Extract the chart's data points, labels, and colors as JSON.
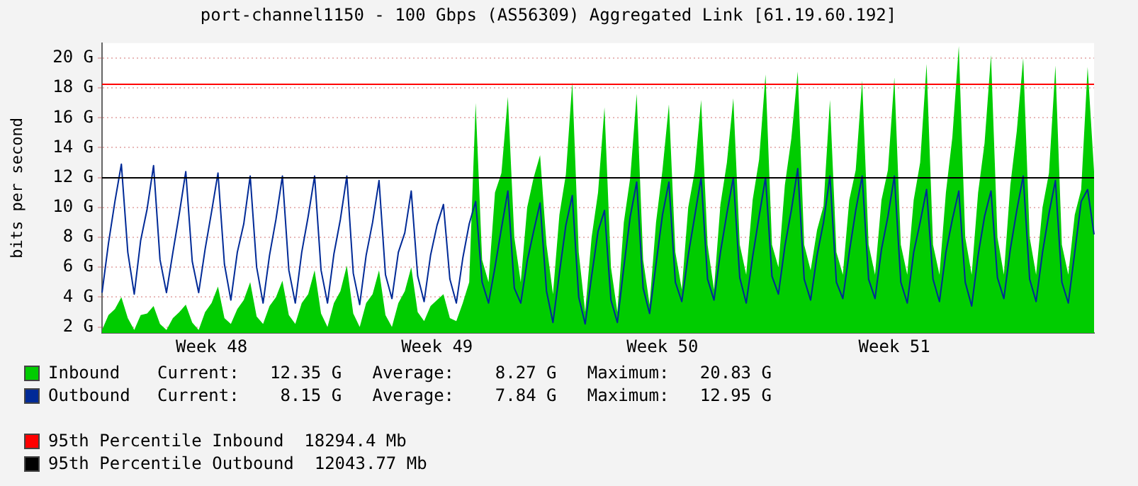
{
  "chart_data": {
    "type": "line",
    "title": "port-channel1150 - 100 Gbps (AS56309) Aggregated Link [61.19.60.192]",
    "ylabel": "bits per second",
    "marker": "none",
    "grid": "y",
    "legend": "bottom",
    "ylim": [
      1.6,
      21
    ],
    "yticks": [
      {
        "value": 2,
        "label": "2 G"
      },
      {
        "value": 4,
        "label": "4 G"
      },
      {
        "value": 6,
        "label": "6 G"
      },
      {
        "value": 8,
        "label": "8 G"
      },
      {
        "value": 10,
        "label": "10 G"
      },
      {
        "value": 12,
        "label": "12 G"
      },
      {
        "value": 14,
        "label": "14 G"
      },
      {
        "value": 16,
        "label": "16 G"
      },
      {
        "value": 18,
        "label": "18 G"
      },
      {
        "value": 20,
        "label": "20 G"
      }
    ],
    "categories": [
      null,
      null,
      null,
      null,
      null,
      null,
      null,
      null,
      null,
      null,
      null,
      null,
      null,
      null,
      null,
      null,
      null,
      "Week 48",
      null,
      null,
      null,
      null,
      null,
      null,
      null,
      null,
      null,
      null,
      null,
      null,
      null,
      null,
      null,
      null,
      null,
      null,
      null,
      null,
      null,
      null,
      null,
      null,
      null,
      null,
      null,
      null,
      null,
      null,
      null,
      null,
      null,
      null,
      "Week 49",
      null,
      null,
      null,
      null,
      null,
      null,
      null,
      null,
      null,
      null,
      null,
      null,
      null,
      null,
      null,
      null,
      null,
      null,
      null,
      null,
      null,
      null,
      null,
      null,
      null,
      null,
      null,
      null,
      null,
      null,
      null,
      null,
      null,
      null,
      "Week 50",
      null,
      null,
      null,
      null,
      null,
      null,
      null,
      null,
      null,
      null,
      null,
      null,
      null,
      null,
      null,
      null,
      null,
      null,
      null,
      null,
      null,
      null,
      null,
      null,
      null,
      null,
      null,
      null,
      null,
      null,
      null,
      null,
      null,
      null,
      null,
      "Week 51",
      null,
      null,
      null,
      null,
      null,
      null,
      null,
      null,
      null,
      null,
      null,
      null,
      null,
      null,
      null,
      null,
      null,
      null,
      null,
      null,
      null,
      null,
      null,
      null,
      null,
      null,
      null,
      null,
      null,
      null,
      null
    ],
    "series": [
      {
        "name": "Inbound",
        "type": "area",
        "color": "#00cc00",
        "values": [
          1.8,
          2.8,
          3.2,
          4.0,
          2.6,
          1.8,
          2.8,
          2.9,
          3.4,
          2.2,
          1.8,
          2.6,
          3.0,
          3.5,
          2.3,
          1.8,
          3.0,
          3.6,
          4.7,
          2.6,
          2.2,
          3.2,
          3.8,
          5.0,
          2.7,
          2.2,
          3.4,
          4.0,
          5.1,
          2.8,
          2.2,
          3.6,
          4.2,
          5.8,
          2.9,
          2.0,
          3.6,
          4.4,
          6.1,
          2.9,
          2.0,
          3.6,
          4.2,
          5.8,
          2.8,
          2.0,
          3.6,
          4.4,
          6.0,
          3.0,
          2.4,
          3.4,
          3.8,
          4.2,
          2.6,
          2.4,
          3.6,
          5.0,
          17.0,
          6.5,
          5.0,
          11.0,
          12.3,
          17.4,
          8.0,
          5.0,
          10.0,
          12.0,
          13.5,
          7.5,
          4.2,
          9.5,
          12.2,
          18.4,
          7.0,
          3.0,
          8.0,
          11.0,
          16.7,
          6.0,
          3.0,
          9.0,
          12.0,
          17.6,
          6.5,
          3.5,
          9.0,
          12.5,
          16.9,
          7.0,
          4.5,
          10.0,
          12.4,
          17.2,
          7.5,
          4.5,
          10.2,
          13.0,
          17.3,
          7.5,
          5.5,
          10.5,
          13.2,
          18.9,
          7.5,
          6.0,
          11.5,
          14.6,
          19.1,
          7.5,
          5.8,
          8.5,
          10.1,
          17.2,
          7.0,
          5.5,
          10.5,
          12.5,
          18.5,
          7.5,
          5.5,
          10.5,
          12.5,
          18.7,
          7.5,
          5.5,
          10.5,
          13.0,
          19.6,
          7.5,
          5.5,
          11.0,
          14.7,
          20.8,
          8.0,
          5.5,
          11.0,
          14.3,
          20.2,
          8.0,
          5.5,
          11.5,
          15.1,
          20.0,
          8.0,
          5.5,
          10.0,
          12.3,
          19.5,
          7.5,
          5.5,
          9.5,
          11.2,
          19.4,
          12.4
        ]
      },
      {
        "name": "Outbound",
        "type": "line",
        "color": "#002a97",
        "values": [
          4.3,
          7.6,
          10.4,
          12.9,
          7.0,
          4.2,
          7.8,
          9.9,
          12.8,
          6.5,
          4.3,
          7.0,
          9.6,
          12.4,
          6.4,
          4.3,
          7.2,
          9.7,
          12.3,
          6.2,
          3.8,
          7.0,
          8.9,
          12.1,
          6.0,
          3.6,
          6.8,
          9.2,
          12.1,
          5.8,
          3.6,
          7.0,
          9.4,
          12.1,
          5.8,
          3.6,
          6.9,
          9.2,
          12.1,
          5.6,
          3.5,
          6.8,
          9.0,
          11.8,
          5.5,
          3.9,
          7.0,
          8.3,
          11.1,
          5.4,
          3.7,
          6.8,
          8.8,
          10.2,
          5.2,
          3.6,
          6.6,
          8.9,
          10.4,
          5.0,
          3.6,
          6.0,
          8.6,
          11.1,
          4.6,
          3.6,
          6.4,
          8.4,
          10.3,
          4.4,
          2.3,
          5.6,
          8.8,
          10.8,
          4.0,
          2.2,
          5.4,
          8.4,
          9.8,
          3.8,
          2.3,
          6.0,
          9.4,
          11.7,
          4.6,
          2.9,
          6.2,
          9.5,
          11.7,
          5.0,
          3.7,
          6.8,
          9.4,
          12.0,
          5.2,
          3.8,
          7.0,
          9.6,
          12.0,
          5.3,
          3.6,
          6.7,
          9.4,
          12.0,
          5.4,
          4.2,
          7.4,
          9.8,
          12.6,
          5.2,
          3.8,
          6.8,
          9.0,
          12.1,
          5.0,
          3.9,
          7.0,
          9.8,
          12.1,
          5.2,
          3.9,
          7.2,
          9.4,
          12.1,
          5.0,
          3.6,
          7.0,
          9.0,
          11.2,
          5.2,
          3.7,
          7.0,
          9.2,
          11.1,
          5.0,
          3.4,
          6.8,
          9.4,
          11.1,
          5.3,
          3.9,
          7.2,
          9.8,
          12.1,
          5.2,
          3.7,
          7.0,
          9.6,
          11.8,
          5.0,
          3.6,
          7.0,
          10.4,
          11.2,
          8.2
        ]
      }
    ],
    "ref_lines": [
      {
        "axis": "y",
        "value": 18.2944,
        "label": "95th Percentile Inbound  18294.4 Mb",
        "color": "#ff0000"
      },
      {
        "axis": "y",
        "value": 12.04377,
        "label": "95th Percentile Outbound  12043.77 Mb",
        "color": "#000000"
      }
    ],
    "annotations": [
      "Current:   12.35 G   Average:    8.27 G   Maximum:   20.83 G",
      "Current:    8.15 G   Average:    7.84 G   Maximum:   12.95 G"
    ]
  }
}
